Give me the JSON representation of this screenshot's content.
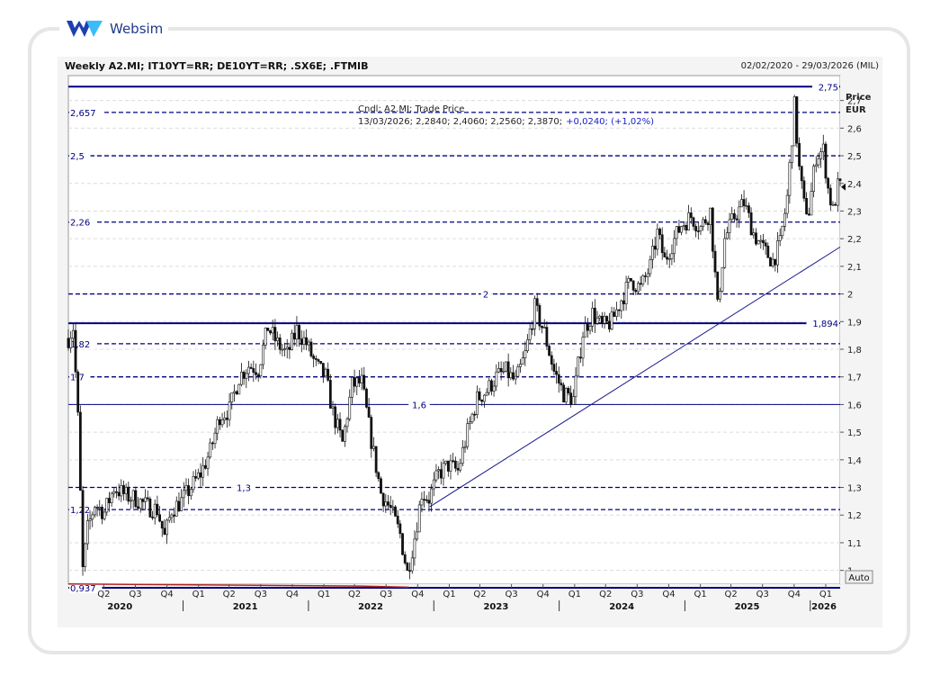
{
  "brand": {
    "name": "Websim",
    "logo_icon": "websim-w-logo-icon"
  },
  "header": {
    "title": "Weekly A2.MI; IT10YT=RR; DE10YT=RR; .SX6E; .FTMIB",
    "range": "02/02/2020 - 29/03/2026 (MIL)"
  },
  "legend": {
    "series": "Cndl; A2.MI; Trade Price",
    "ohlc": "13/03/2026; 2,2840; 2,4060; 2,2560; 2,3870;",
    "change": "+0,0240; (+1,02%)"
  },
  "axis": {
    "price_label": "Price",
    "currency": "EUR",
    "auto_button": "Auto"
  },
  "colors": {
    "candle": "#111111",
    "hline": "#000080",
    "trend": "#1a1a8c",
    "volume": "#b22222"
  },
  "chart_data": {
    "type": "candlestick",
    "title": "Weekly A2.MI; IT10YT=RR; DE10YT=RR; .SX6E; .FTMIB",
    "ylabel": "Price EUR",
    "ylim": [
      0.95,
      2.79
    ],
    "xlim": [
      "2020-02-02",
      "2026-03-29"
    ],
    "y_ticks": [
      "1",
      "1,1",
      "1,2",
      "1,3",
      "1,4",
      "1,5",
      "1,6",
      "1,7",
      "1,8",
      "1,9",
      "2",
      "2,1",
      "2,2",
      "2,3",
      "2,4",
      "2,5",
      "2,6",
      "2,7"
    ],
    "y_tick_values": [
      1.0,
      1.1,
      1.2,
      1.3,
      1.4,
      1.5,
      1.6,
      1.7,
      1.8,
      1.9,
      2.0,
      2.1,
      2.2,
      2.3,
      2.4,
      2.5,
      2.6,
      2.7
    ],
    "x_quarters": [
      {
        "label": "Q2",
        "date": "2020-05-15"
      },
      {
        "label": "Q3",
        "date": "2020-08-15"
      },
      {
        "label": "Q4",
        "date": "2020-11-15"
      },
      {
        "label": "Q1",
        "date": "2021-02-15"
      },
      {
        "label": "Q2",
        "date": "2021-05-15"
      },
      {
        "label": "Q3",
        "date": "2021-08-15"
      },
      {
        "label": "Q4",
        "date": "2021-11-15"
      },
      {
        "label": "Q1",
        "date": "2022-02-15"
      },
      {
        "label": "Q2",
        "date": "2022-05-15"
      },
      {
        "label": "Q3",
        "date": "2022-08-15"
      },
      {
        "label": "Q4",
        "date": "2022-11-15"
      },
      {
        "label": "Q1",
        "date": "2023-02-15"
      },
      {
        "label": "Q2",
        "date": "2023-05-15"
      },
      {
        "label": "Q3",
        "date": "2023-08-15"
      },
      {
        "label": "Q4",
        "date": "2023-11-15"
      },
      {
        "label": "Q1",
        "date": "2024-02-15"
      },
      {
        "label": "Q2",
        "date": "2024-05-15"
      },
      {
        "label": "Q3",
        "date": "2024-08-15"
      },
      {
        "label": "Q4",
        "date": "2024-11-15"
      },
      {
        "label": "Q1",
        "date": "2025-02-15"
      },
      {
        "label": "Q2",
        "date": "2025-05-15"
      },
      {
        "label": "Q3",
        "date": "2025-08-15"
      },
      {
        "label": "Q4",
        "date": "2025-11-15"
      },
      {
        "label": "Q1",
        "date": "2026-02-15"
      }
    ],
    "x_years": [
      {
        "label": "2020",
        "date": "2020-07-01"
      },
      {
        "label": "2021",
        "date": "2021-07-01"
      },
      {
        "label": "2022",
        "date": "2022-07-01"
      },
      {
        "label": "2023",
        "date": "2023-07-01"
      },
      {
        "label": "2024",
        "date": "2024-07-01"
      },
      {
        "label": "2025",
        "date": "2025-07-01"
      },
      {
        "label": "2026",
        "date": "2026-02-10"
      }
    ],
    "year_dividers": [
      "2021-01-01",
      "2022-01-01",
      "2023-01-01",
      "2024-01-01",
      "2025-01-01",
      "2026-01-01"
    ],
    "horizontal_levels": [
      {
        "value": 2.75,
        "label": "2,75",
        "style": "solid",
        "label_pos": "right"
      },
      {
        "value": 2.657,
        "label": "2,657",
        "style": "dashed",
        "label_pos": "left"
      },
      {
        "value": 2.5,
        "label": "2,5",
        "style": "dashed",
        "label_pos": "left"
      },
      {
        "value": 2.26,
        "label": "2,26",
        "style": "dashed",
        "label_pos": "left"
      },
      {
        "value": 2.0,
        "label": "2",
        "style": "dashed",
        "label_pos": "middle"
      },
      {
        "value": 1.894,
        "label": "1,894",
        "style": "solid",
        "label_pos": "right"
      },
      {
        "value": 1.82,
        "label": "1,82",
        "style": "dashed",
        "label_pos": "left"
      },
      {
        "value": 1.7,
        "label": "1,7",
        "style": "dashed",
        "label_pos": "left"
      },
      {
        "value": 1.6,
        "label": "1,6",
        "style": "thin",
        "label_pos": "middle"
      },
      {
        "value": 1.3,
        "label": "1,3",
        "style": "dashed",
        "label_pos": "middle"
      },
      {
        "value": 1.22,
        "label": "1,22",
        "style": "dashed",
        "label_pos": "left"
      },
      {
        "value": 0.937,
        "label": "0,937",
        "style": "solid",
        "label_pos": "left"
      }
    ],
    "trend_line": [
      {
        "x": "2022-12-20",
        "y": 1.23
      },
      {
        "x": "2026-03-29",
        "y": 2.17
      }
    ],
    "last_price": 2.387,
    "price_path": [
      {
        "x": "2020-02-02",
        "y": 1.84
      },
      {
        "x": "2020-02-16",
        "y": 1.88
      },
      {
        "x": "2020-03-01",
        "y": 1.55
      },
      {
        "x": "2020-03-15",
        "y": 1.0
      },
      {
        "x": "2020-03-29",
        "y": 1.15
      },
      {
        "x": "2020-04-19",
        "y": 1.24
      },
      {
        "x": "2020-05-17",
        "y": 1.21
      },
      {
        "x": "2020-06-14",
        "y": 1.3
      },
      {
        "x": "2020-07-19",
        "y": 1.27
      },
      {
        "x": "2020-08-16",
        "y": 1.26
      },
      {
        "x": "2020-09-20",
        "y": 1.23
      },
      {
        "x": "2020-10-18",
        "y": 1.22
      },
      {
        "x": "2020-11-08",
        "y": 1.12
      },
      {
        "x": "2020-11-29",
        "y": 1.22
      },
      {
        "x": "2020-12-27",
        "y": 1.25
      },
      {
        "x": "2021-01-24",
        "y": 1.3
      },
      {
        "x": "2021-02-21",
        "y": 1.35
      },
      {
        "x": "2021-03-21",
        "y": 1.43
      },
      {
        "x": "2021-04-18",
        "y": 1.56
      },
      {
        "x": "2021-05-16",
        "y": 1.58
      },
      {
        "x": "2021-06-13",
        "y": 1.7
      },
      {
        "x": "2021-07-11",
        "y": 1.74
      },
      {
        "x": "2021-08-08",
        "y": 1.73
      },
      {
        "x": "2021-09-05",
        "y": 1.88
      },
      {
        "x": "2021-10-03",
        "y": 1.82
      },
      {
        "x": "2021-10-31",
        "y": 1.78
      },
      {
        "x": "2021-11-28",
        "y": 1.87
      },
      {
        "x": "2021-12-26",
        "y": 1.82
      },
      {
        "x": "2022-01-23",
        "y": 1.74
      },
      {
        "x": "2022-02-20",
        "y": 1.7
      },
      {
        "x": "2022-03-13",
        "y": 1.57
      },
      {
        "x": "2022-04-10",
        "y": 1.46
      },
      {
        "x": "2022-05-08",
        "y": 1.67
      },
      {
        "x": "2022-06-05",
        "y": 1.68
      },
      {
        "x": "2022-07-03",
        "y": 1.47
      },
      {
        "x": "2022-07-31",
        "y": 1.28
      },
      {
        "x": "2022-08-28",
        "y": 1.22
      },
      {
        "x": "2022-09-25",
        "y": 1.13
      },
      {
        "x": "2022-10-16",
        "y": 0.99
      },
      {
        "x": "2022-11-06",
        "y": 1.12
      },
      {
        "x": "2022-11-27",
        "y": 1.28
      },
      {
        "x": "2022-12-18",
        "y": 1.26
      },
      {
        "x": "2023-01-15",
        "y": 1.35
      },
      {
        "x": "2023-02-12",
        "y": 1.38
      },
      {
        "x": "2023-03-12",
        "y": 1.36
      },
      {
        "x": "2023-04-09",
        "y": 1.5
      },
      {
        "x": "2023-05-07",
        "y": 1.62
      },
      {
        "x": "2023-06-04",
        "y": 1.65
      },
      {
        "x": "2023-07-02",
        "y": 1.7
      },
      {
        "x": "2023-07-30",
        "y": 1.72
      },
      {
        "x": "2023-08-27",
        "y": 1.68
      },
      {
        "x": "2023-09-24",
        "y": 1.78
      },
      {
        "x": "2023-10-22",
        "y": 1.95
      },
      {
        "x": "2023-11-19",
        "y": 1.86
      },
      {
        "x": "2023-12-17",
        "y": 1.72
      },
      {
        "x": "2024-01-14",
        "y": 1.64
      },
      {
        "x": "2024-02-11",
        "y": 1.62
      },
      {
        "x": "2024-03-10",
        "y": 1.86
      },
      {
        "x": "2024-04-07",
        "y": 1.93
      },
      {
        "x": "2024-05-05",
        "y": 1.88
      },
      {
        "x": "2024-06-02",
        "y": 1.9
      },
      {
        "x": "2024-06-30",
        "y": 1.98
      },
      {
        "x": "2024-07-28",
        "y": 2.05
      },
      {
        "x": "2024-08-25",
        "y": 2.02
      },
      {
        "x": "2024-09-22",
        "y": 2.1
      },
      {
        "x": "2024-10-13",
        "y": 2.22
      },
      {
        "x": "2024-11-03",
        "y": 2.12
      },
      {
        "x": "2024-11-24",
        "y": 2.18
      },
      {
        "x": "2024-12-22",
        "y": 2.25
      },
      {
        "x": "2025-01-19",
        "y": 2.28
      },
      {
        "x": "2025-02-16",
        "y": 2.24
      },
      {
        "x": "2025-03-16",
        "y": 2.3
      },
      {
        "x": "2025-04-06",
        "y": 1.95
      },
      {
        "x": "2025-04-27",
        "y": 2.2
      },
      {
        "x": "2025-05-25",
        "y": 2.28
      },
      {
        "x": "2025-06-22",
        "y": 2.33
      },
      {
        "x": "2025-07-20",
        "y": 2.22
      },
      {
        "x": "2025-08-17",
        "y": 2.16
      },
      {
        "x": "2025-09-14",
        "y": 2.12
      },
      {
        "x": "2025-10-05",
        "y": 2.18
      },
      {
        "x": "2025-10-26",
        "y": 2.35
      },
      {
        "x": "2025-11-16",
        "y": 2.68
      },
      {
        "x": "2025-11-30",
        "y": 2.45
      },
      {
        "x": "2025-12-14",
        "y": 2.32
      },
      {
        "x": "2025-12-28",
        "y": 2.3
      },
      {
        "x": "2026-01-18",
        "y": 2.5
      },
      {
        "x": "2026-02-08",
        "y": 2.52
      },
      {
        "x": "2026-02-22",
        "y": 2.38
      },
      {
        "x": "2026-03-08",
        "y": 2.3
      },
      {
        "x": "2026-03-22",
        "y": 2.387
      }
    ]
  }
}
